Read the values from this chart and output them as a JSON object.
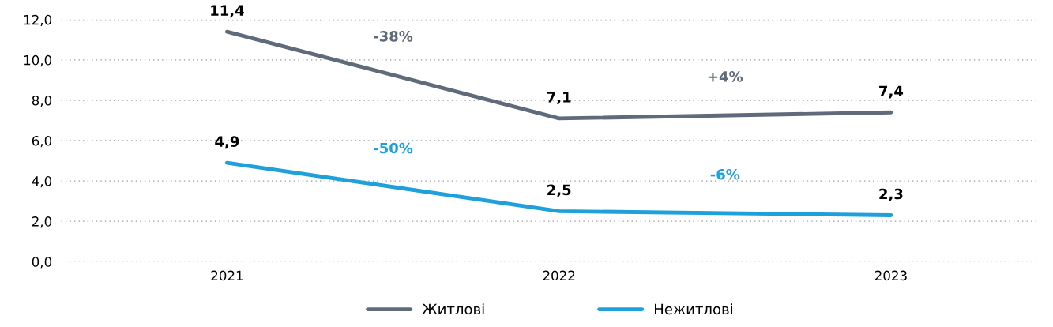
{
  "chart_data": {
    "type": "line",
    "categories": [
      "2021",
      "2022",
      "2023"
    ],
    "series": [
      {
        "name": "Житлові",
        "color": "#5f6b7a",
        "values": [
          11.4,
          7.1,
          7.4
        ],
        "value_labels": [
          "11,4",
          "7,1",
          "7,4"
        ]
      },
      {
        "name": "Нежитлові",
        "color": "#1ea0da",
        "values": [
          4.9,
          2.5,
          2.3
        ],
        "value_labels": [
          "4,9",
          "2,5",
          "2,3"
        ]
      }
    ],
    "annotations": [
      "-38%",
      "+4%",
      "-50%",
      "-6%"
    ],
    "ylim": [
      0,
      12
    ],
    "yticks": [
      {
        "value": 0,
        "label": "0,0"
      },
      {
        "value": 2,
        "label": "2,0"
      },
      {
        "value": 4,
        "label": "4,0"
      },
      {
        "value": 6,
        "label": "6,0"
      },
      {
        "value": 8,
        "label": "8,0"
      },
      {
        "value": 10,
        "label": "10,0"
      },
      {
        "value": 12,
        "label": "12,0"
      }
    ],
    "grid": "y",
    "legend": "bottom",
    "marker": "none",
    "line_style": "solid"
  }
}
